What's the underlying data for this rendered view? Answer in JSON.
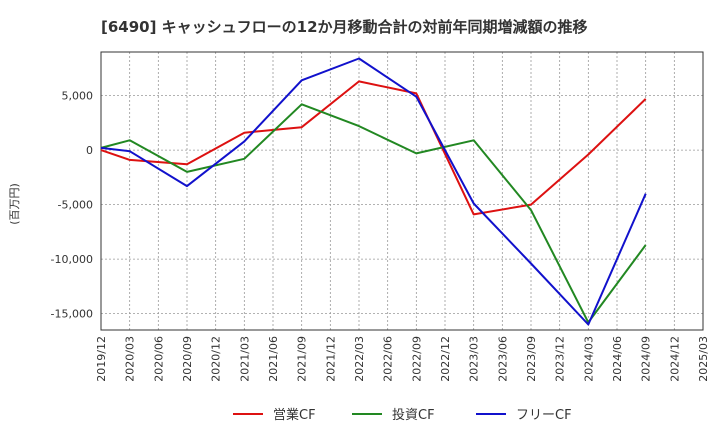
{
  "chart_data": {
    "type": "line",
    "title": "[6490]  キャッシュフローの12か月移動合計の対前年同期増減額の推移",
    "ylabel": "(百万円)",
    "xlabel": "",
    "ylim": [
      -16500,
      9000
    ],
    "yticks": [
      5000,
      0,
      -5000,
      -10000,
      -15000
    ],
    "ytick_labels": [
      "5,000",
      "0",
      "-5,000",
      "-10,000",
      "-15,000"
    ],
    "xtick_labels": [
      "2019/12",
      "2020/03",
      "2020/06",
      "2020/09",
      "2020/12",
      "2021/03",
      "2021/06",
      "2021/09",
      "2021/12",
      "2022/03",
      "2022/06",
      "2022/09",
      "2022/12",
      "2023/03",
      "2023/06",
      "2023/09",
      "2023/12",
      "2024/03",
      "2024/06",
      "2024/09",
      "2024/12",
      "2025/03"
    ],
    "grid": true,
    "legend_position": "bottom",
    "series": [
      {
        "name": "営業CF",
        "color": "#dd1111",
        "points": [
          [
            "2019/12",
            0
          ],
          [
            "2020/03",
            -900
          ],
          [
            "2020/09",
            -1300
          ],
          [
            "2021/03",
            1600
          ],
          [
            "2021/09",
            2100
          ],
          [
            "2022/03",
            6300
          ],
          [
            "2022/09",
            5200
          ],
          [
            "2023/03",
            -5900
          ],
          [
            "2023/09",
            -5000
          ],
          [
            "2024/03",
            -400
          ],
          [
            "2024/09",
            4700
          ]
        ]
      },
      {
        "name": "投資CF",
        "color": "#228822",
        "points": [
          [
            "2019/12",
            200
          ],
          [
            "2020/03",
            900
          ],
          [
            "2020/09",
            -2000
          ],
          [
            "2021/03",
            -800
          ],
          [
            "2021/09",
            4200
          ],
          [
            "2022/03",
            2200
          ],
          [
            "2022/09",
            -300
          ],
          [
            "2023/03",
            900
          ],
          [
            "2023/09",
            -5500
          ],
          [
            "2024/03",
            -15800
          ],
          [
            "2024/09",
            -8700
          ]
        ]
      },
      {
        "name": "フリーCF",
        "color": "#1111cc",
        "points": [
          [
            "2019/12",
            200
          ],
          [
            "2020/03",
            -100
          ],
          [
            "2020/09",
            -3300
          ],
          [
            "2021/03",
            800
          ],
          [
            "2021/09",
            6400
          ],
          [
            "2022/03",
            8400
          ],
          [
            "2022/09",
            4900
          ],
          [
            "2023/03",
            -4900
          ],
          [
            "2023/09",
            -10400
          ],
          [
            "2024/03",
            -16000
          ],
          [
            "2024/09",
            -4000
          ]
        ]
      }
    ]
  }
}
